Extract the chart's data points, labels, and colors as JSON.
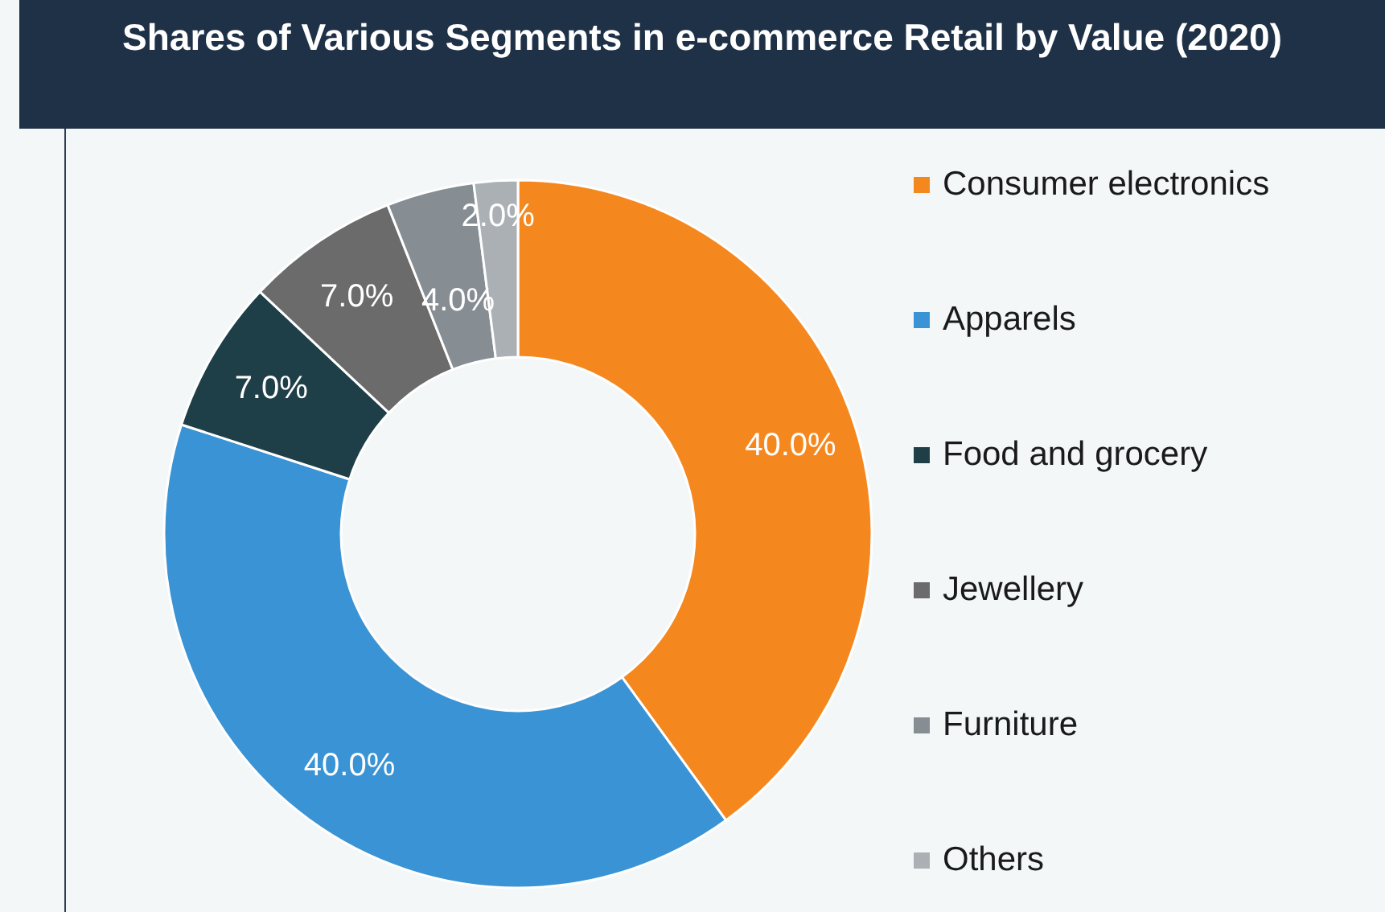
{
  "chart_data": {
    "type": "donut",
    "title": "Shares of Various Segments in e-commerce Retail by Value (2020)",
    "categories": [
      "Consumer electronics",
      "Apparels",
      "Food and grocery",
      "Jewellery",
      "Furniture",
      "Others"
    ],
    "values": [
      40,
      40,
      7,
      7,
      4,
      2
    ],
    "colors": [
      "#f5871f",
      "#3a93d4",
      "#1f3f48",
      "#6b6b6b",
      "#868d93",
      "#aab0b4"
    ],
    "value_labels": [
      "40.0%",
      "40.0%",
      "7.0%",
      "7.0%",
      "4.0%",
      "2.0%"
    ],
    "legend": "right"
  }
}
